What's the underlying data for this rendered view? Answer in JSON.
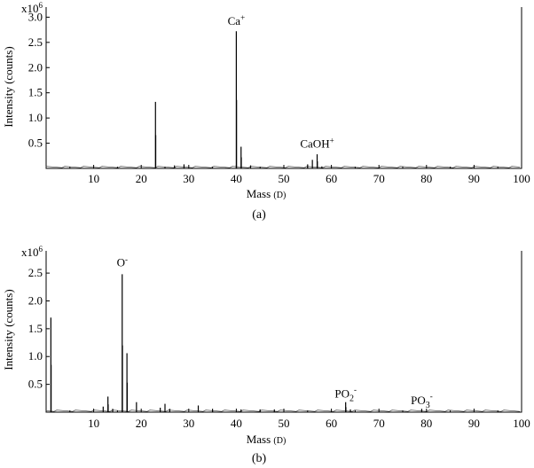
{
  "chart_data": [
    {
      "type": "bar",
      "panel_label": "(a)",
      "scale_label": "x10",
      "scale_exponent": "6",
      "xlabel": "Mass",
      "xlabel_unit": "(D)",
      "ylabel": "Intensity (counts)",
      "xlim": [
        0,
        100
      ],
      "ylim": [
        0,
        3.2
      ],
      "x_ticks": [
        10,
        20,
        30,
        40,
        50,
        60,
        70,
        80,
        90,
        100
      ],
      "y_ticks": [
        0.5,
        1.0,
        1.5,
        2.0,
        2.5,
        3.0
      ],
      "y_tick_labels": [
        "0.5",
        "1.0",
        "1.5",
        "2.0",
        "2.5",
        "3.0"
      ],
      "peaks": [
        {
          "x": 23,
          "y": 1.32
        },
        {
          "x": 23.05,
          "y": 0.66
        },
        {
          "x": 27,
          "y": 0.06
        },
        {
          "x": 29,
          "y": 0.08
        },
        {
          "x": 40,
          "y": 2.72
        },
        {
          "x": 40.05,
          "y": 1.36
        },
        {
          "x": 41,
          "y": 0.43
        },
        {
          "x": 41.05,
          "y": 0.22
        },
        {
          "x": 43,
          "y": 0.06
        },
        {
          "x": 55,
          "y": 0.08
        },
        {
          "x": 56,
          "y": 0.17
        },
        {
          "x": 57,
          "y": 0.28
        },
        {
          "x": 57.05,
          "y": 0.14
        },
        {
          "x": 58,
          "y": 0.04
        }
      ],
      "annotations": [
        {
          "text": "Ca",
          "sup": "+",
          "x": 40,
          "y": 2.78
        },
        {
          "text": "CaOH",
          "sup": "+",
          "x": 57,
          "y": 0.34
        }
      ]
    },
    {
      "type": "bar",
      "panel_label": "(b)",
      "scale_label": "x10",
      "scale_exponent": "6",
      "xlabel": "Mass",
      "xlabel_unit": "(D)",
      "ylabel": "Intensity (counts)",
      "xlim": [
        0,
        100
      ],
      "ylim": [
        0,
        2.9
      ],
      "x_ticks": [
        10,
        20,
        30,
        40,
        50,
        60,
        70,
        80,
        90,
        100
      ],
      "y_ticks": [
        0.5,
        1.0,
        1.5,
        2.0,
        2.5
      ],
      "y_tick_labels": [
        "0.5",
        "1.0",
        "1.5",
        "2.0",
        "2.5"
      ],
      "peaks": [
        {
          "x": 1,
          "y": 1.7
        },
        {
          "x": 1.05,
          "y": 0.85
        },
        {
          "x": 12,
          "y": 0.1
        },
        {
          "x": 13,
          "y": 0.28
        },
        {
          "x": 13.05,
          "y": 0.14
        },
        {
          "x": 14,
          "y": 0.06
        },
        {
          "x": 16,
          "y": 2.48
        },
        {
          "x": 16.05,
          "y": 1.2
        },
        {
          "x": 17,
          "y": 1.06
        },
        {
          "x": 17.05,
          "y": 0.53
        },
        {
          "x": 19,
          "y": 0.18
        },
        {
          "x": 24,
          "y": 0.08
        },
        {
          "x": 25,
          "y": 0.15
        },
        {
          "x": 26,
          "y": 0.06
        },
        {
          "x": 32,
          "y": 0.12
        },
        {
          "x": 35,
          "y": 0.06
        },
        {
          "x": 41,
          "y": 0.05
        },
        {
          "x": 45,
          "y": 0.05
        },
        {
          "x": 48,
          "y": 0.05
        },
        {
          "x": 63,
          "y": 0.18
        },
        {
          "x": 63.05,
          "y": 0.09
        },
        {
          "x": 64,
          "y": 0.05
        },
        {
          "x": 79,
          "y": 0.06
        }
      ],
      "annotations": [
        {
          "text": "O",
          "sup": "-",
          "x": 16,
          "y": 2.56
        },
        {
          "text": "PO",
          "sub": "2",
          "sup": "-",
          "x": 63,
          "y": 0.2
        },
        {
          "text": "PO",
          "sub": "3",
          "sup": "-",
          "x": 79,
          "y": 0.08
        }
      ]
    }
  ]
}
